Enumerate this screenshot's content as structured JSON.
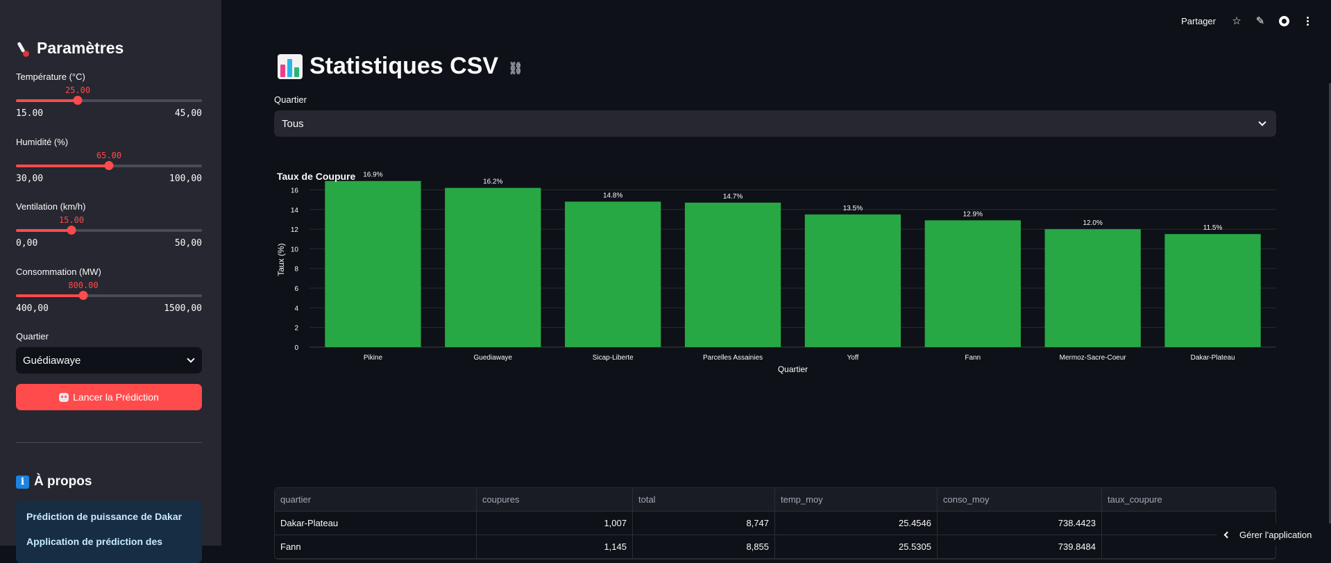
{
  "sidebar": {
    "title": "Paramètres",
    "sliders": [
      {
        "label": "Température (°C)",
        "value": "25.00",
        "min": "15.00",
        "max": "45,00",
        "fraction": 0.333
      },
      {
        "label": "Humidité (%)",
        "value": "65.00",
        "min": "30,00",
        "max": "100,00",
        "fraction": 0.5
      },
      {
        "label": "Ventilation (km/h)",
        "value": "15.00",
        "min": "0,00",
        "max": "50,00",
        "fraction": 0.3
      },
      {
        "label": "Consommation (MW)",
        "value": "800.00",
        "min": "400,00",
        "max": "1500,00",
        "fraction": 0.364
      }
    ],
    "select_label": "Quartier",
    "select_value": "Guédiawaye",
    "predict_button": "Lancer la Prédiction",
    "about_title": "À propos",
    "about_heading": "Prédiction de puissance de Dakar",
    "about_text": "Application de prédiction des"
  },
  "topbar": {
    "share_label": "Partager",
    "icons": [
      "star-icon",
      "pencil-icon",
      "github-icon",
      "more-vertical-icon"
    ]
  },
  "main": {
    "title": "Statistiques CSV",
    "quartier_label": "Quartier",
    "quartier_value": "Tous",
    "manage_label": "Gérer l'application"
  },
  "chart_data": {
    "type": "bar",
    "title": "Taux de Coupure",
    "xlabel": "Quartier",
    "ylabel": "Taux (%)",
    "categories": [
      "Pikine",
      "Guediawaye",
      "Sicap-Liberte",
      "Parcelles Assainies",
      "Yoff",
      "Fann",
      "Mermoz-Sacre-Coeur",
      "Dakar-Plateau"
    ],
    "values": [
      16.9,
      16.2,
      14.8,
      14.7,
      13.5,
      12.9,
      12.0,
      11.5
    ],
    "labels": [
      "16.9%",
      "16.2%",
      "14.8%",
      "14.7%",
      "13.5%",
      "12.9%",
      "12.0%",
      "11.5%"
    ],
    "yticks": [
      0,
      2,
      4,
      6,
      8,
      10,
      12,
      14,
      16
    ],
    "ylim": [
      0,
      17.8
    ],
    "bar_color": "#28a745",
    "grid": true
  },
  "table": {
    "headers": [
      "quartier",
      "coupures",
      "total",
      "temp_moy",
      "conso_moy",
      "taux_coupure"
    ],
    "rows": [
      [
        "Dakar-Plateau",
        "1,007",
        "8,747",
        "25.4546",
        "738.4423",
        ""
      ],
      [
        "Fann",
        "1,145",
        "8,855",
        "25.5305",
        "739.8484",
        ""
      ]
    ]
  },
  "colors": {
    "accent": "#ff4b4b",
    "sidebar_bg": "#262730",
    "main_bg": "#0e1117",
    "bar": "#28a745"
  }
}
